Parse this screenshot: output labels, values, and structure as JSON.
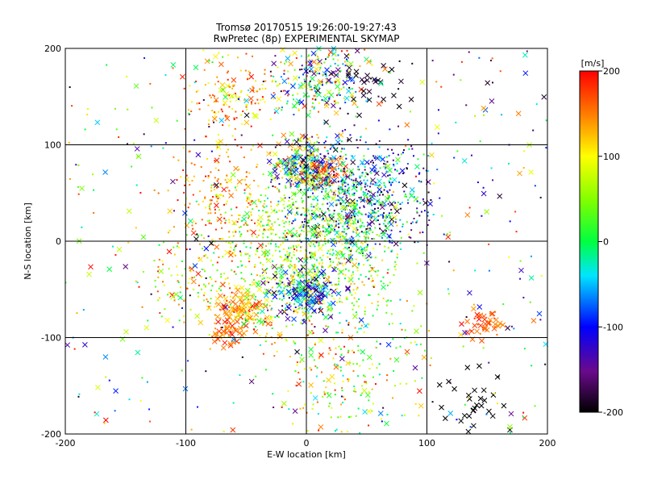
{
  "chart_data": {
    "type": "scatter",
    "title": "Tromsø 20170515 19:26:00-19:27:43",
    "subtitle": "RwPretec (8p) EXPERIMENTAL SKYMAP",
    "xlabel": "E-W location [km]",
    "ylabel": "N-S location [km]",
    "xlim": [
      -200,
      200
    ],
    "ylim": [
      -200,
      200
    ],
    "x_ticks": [
      "-200",
      "-100",
      "0",
      "100",
      "200"
    ],
    "y_ticks": [
      "-200",
      "-100",
      "0",
      "100",
      "200"
    ],
    "grid": true,
    "colorbar": {
      "label": "[m/s]",
      "min": -200,
      "max": 200,
      "ticks": [
        "200",
        "100",
        "0",
        "-100",
        "-200"
      ],
      "colormap": "black-purple-blue-cyan-green-yellow-orange-red"
    },
    "markers": [
      "dot",
      "x"
    ],
    "clusters": [
      {
        "x": -3,
        "y": 80,
        "r": 22,
        "n": 240,
        "v": [
          -200,
          190
        ],
        "marker_x": 0.35
      },
      {
        "x": 15,
        "y": 70,
        "r": 14,
        "n": 80,
        "v": [
          120,
          200
        ],
        "marker_x": 0.4
      },
      {
        "x": 40,
        "y": 45,
        "r": 50,
        "n": 720,
        "v": [
          -200,
          40
        ],
        "marker_x": 0.18
      },
      {
        "x": 0,
        "y": -55,
        "r": 24,
        "n": 200,
        "v": [
          -200,
          0
        ],
        "marker_x": 0.55
      },
      {
        "x": -55,
        "y": -70,
        "r": 18,
        "n": 110,
        "v": [
          100,
          200
        ],
        "marker_x": 0.6
      },
      {
        "x": -60,
        "y": -95,
        "r": 14,
        "n": 55,
        "v": [
          130,
          200
        ],
        "marker_x": 0.6
      },
      {
        "x": 145,
        "y": -85,
        "r": 14,
        "n": 45,
        "v": [
          140,
          200
        ],
        "marker_x": 0.6
      },
      {
        "x": 0,
        "y": -10,
        "r": 60,
        "n": 900,
        "v": [
          -20,
          140
        ],
        "marker_x": 0.06
      },
      {
        "x": 10,
        "y": 170,
        "r": 35,
        "n": 260,
        "v": [
          -180,
          200
        ],
        "marker_x": 0.25
      },
      {
        "x": -60,
        "y": 150,
        "r": 30,
        "n": 140,
        "v": [
          80,
          200
        ],
        "marker_x": 0.15
      },
      {
        "x": -70,
        "y": 50,
        "r": 45,
        "n": 180,
        "v": [
          100,
          200
        ],
        "marker_x": 0.1
      },
      {
        "x": 30,
        "y": -130,
        "r": 60,
        "n": 240,
        "v": [
          -40,
          200
        ],
        "marker_x": 0.15
      },
      {
        "x": -95,
        "y": -40,
        "r": 35,
        "n": 120,
        "v": [
          0,
          200
        ],
        "marker_x": 0.1
      },
      {
        "x": 140,
        "y": -170,
        "r": 30,
        "n": 30,
        "v": [
          -200,
          -200
        ],
        "marker_x": 1.0
      },
      {
        "x": 55,
        "y": 165,
        "r": 30,
        "n": 40,
        "v": [
          -200,
          -180
        ],
        "marker_x": 0.7
      },
      {
        "x": 0,
        "y": 0,
        "r": 200,
        "n": 450,
        "v": [
          -200,
          200
        ],
        "marker_x": 0.3
      }
    ]
  }
}
